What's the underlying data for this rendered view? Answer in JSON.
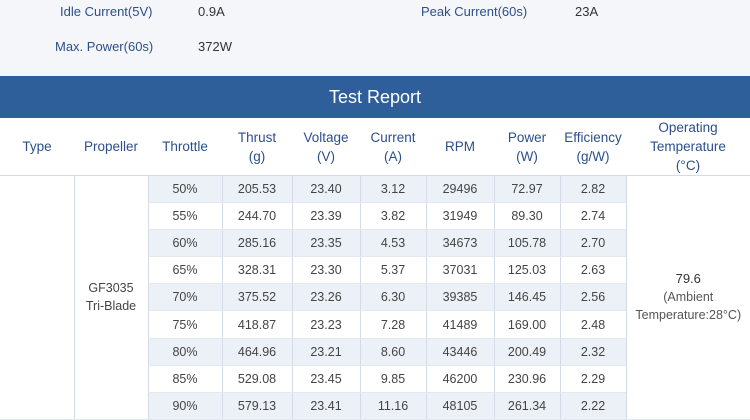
{
  "specs": {
    "idle_current_label": "Idle Current(5V)",
    "idle_current_value": "0.9A",
    "peak_current_label": "Peak Current(60s)",
    "peak_current_value": "23A",
    "max_power_label": "Max. Power(60s)",
    "max_power_value": "372W"
  },
  "report": {
    "title": "Test Report",
    "headers": {
      "type": "Type",
      "propeller": "Propeller",
      "throttle": "Throttle",
      "thrust_1": "Thrust",
      "thrust_2": "(g)",
      "voltage_1": "Voltage",
      "voltage_2": "(V)",
      "current_1": "Current",
      "current_2": "(A)",
      "rpm": "RPM",
      "power_1": "Power",
      "power_2": "(W)",
      "efficiency_1": "Efficiency",
      "efficiency_2": "(g/W)",
      "temp_1": "Operating",
      "temp_2": "Temperature",
      "temp_3": "(°C)"
    },
    "propeller_1": "GF3035",
    "propeller_2": "Tri-Blade",
    "temperature_value": "79.6",
    "temperature_note_1": "(Ambient",
    "temperature_note_2": "Temperature:28°C)",
    "rows": [
      {
        "throttle": "50%",
        "thrust": "205.53",
        "voltage": "23.40",
        "current": "3.12",
        "rpm": "29496",
        "power": "72.97",
        "efficiency": "2.82"
      },
      {
        "throttle": "55%",
        "thrust": "244.70",
        "voltage": "23.39",
        "current": "3.82",
        "rpm": "31949",
        "power": "89.30",
        "efficiency": "2.74"
      },
      {
        "throttle": "60%",
        "thrust": "285.16",
        "voltage": "23.35",
        "current": "4.53",
        "rpm": "34673",
        "power": "105.78",
        "efficiency": "2.70"
      },
      {
        "throttle": "65%",
        "thrust": "328.31",
        "voltage": "23.30",
        "current": "5.37",
        "rpm": "37031",
        "power": "125.03",
        "efficiency": "2.63"
      },
      {
        "throttle": "70%",
        "thrust": "375.52",
        "voltage": "23.26",
        "current": "6.30",
        "rpm": "39385",
        "power": "146.45",
        "efficiency": "2.56"
      },
      {
        "throttle": "75%",
        "thrust": "418.87",
        "voltage": "23.23",
        "current": "7.28",
        "rpm": "41489",
        "power": "169.00",
        "efficiency": "2.48"
      },
      {
        "throttle": "80%",
        "thrust": "464.96",
        "voltage": "23.21",
        "current": "8.60",
        "rpm": "43446",
        "power": "200.49",
        "efficiency": "2.32"
      },
      {
        "throttle": "85%",
        "thrust": "529.08",
        "voltage": "23.45",
        "current": "9.85",
        "rpm": "46200",
        "power": "230.96",
        "efficiency": "2.29"
      },
      {
        "throttle": "90%",
        "thrust": "579.13",
        "voltage": "23.41",
        "current": "11.16",
        "rpm": "48105",
        "power": "261.34",
        "efficiency": "2.22"
      }
    ]
  }
}
